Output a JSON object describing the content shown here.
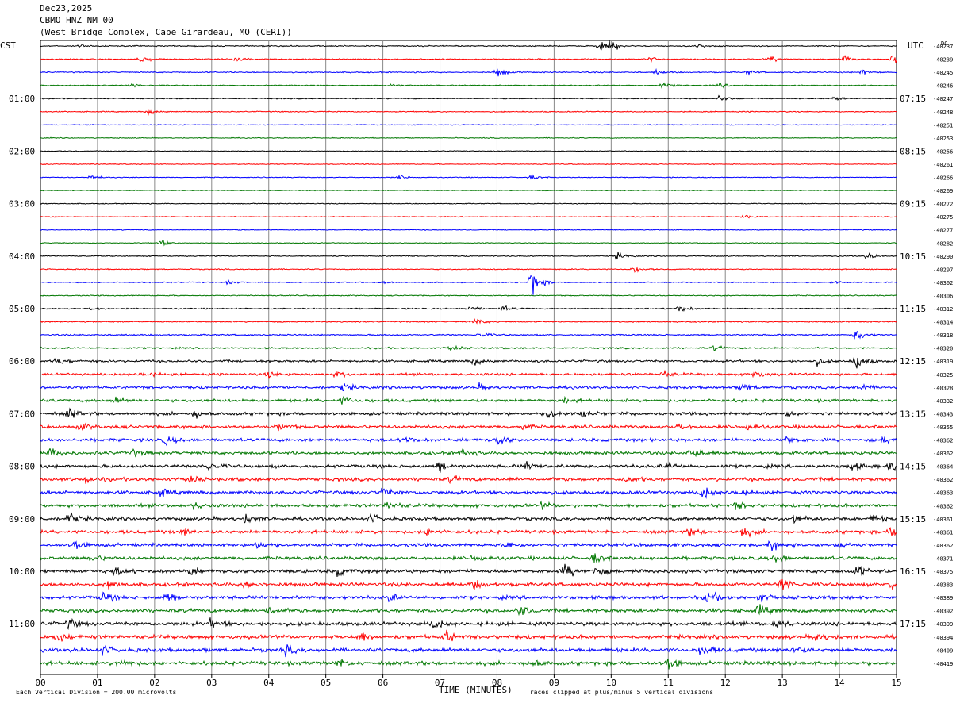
{
  "header": {
    "date": "Dec23,2025",
    "station": "CBMO HNZ NM 00",
    "location": "(West Bridge Complex, Cape Girardeau, MO (CERI))"
  },
  "left_axis_label": "CST",
  "right_axis_label": "UTC",
  "dc_label": "DC",
  "footer": {
    "xlabel": "TIME (MINUTES)",
    "scale_note": "Each Vertical Division =  200.00 microvolts",
    "clip_note": "Traces clipped at plus/minus 5 vertical divisions"
  },
  "colors": {
    "cycle": [
      "#000000",
      "#ff0000",
      "#0000ff",
      "#007700"
    ],
    "grid": "#888888"
  },
  "chart_data": {
    "type": "line",
    "title": "CBMO HNZ NM 00",
    "xlabel": "TIME (MINUTES)",
    "xlim": [
      0,
      15
    ],
    "x_ticks": [
      "00",
      "01",
      "02",
      "03",
      "04",
      "05",
      "06",
      "07",
      "08",
      "09",
      "10",
      "11",
      "12",
      "13",
      "14",
      "15"
    ],
    "cst_labels": [
      {
        "row": 4,
        "text": "01:00"
      },
      {
        "row": 8,
        "text": "02:00"
      },
      {
        "row": 12,
        "text": "03:00"
      },
      {
        "row": 16,
        "text": "04:00"
      },
      {
        "row": 20,
        "text": "05:00"
      },
      {
        "row": 24,
        "text": "06:00"
      },
      {
        "row": 28,
        "text": "07:00"
      },
      {
        "row": 32,
        "text": "08:00"
      },
      {
        "row": 36,
        "text": "09:00"
      },
      {
        "row": 40,
        "text": "10:00"
      },
      {
        "row": 44,
        "text": "11:00"
      }
    ],
    "utc_labels": [
      {
        "row": 4,
        "text": "07:15"
      },
      {
        "row": 8,
        "text": "08:15"
      },
      {
        "row": 12,
        "text": "09:15"
      },
      {
        "row": 16,
        "text": "10:15"
      },
      {
        "row": 20,
        "text": "11:15"
      },
      {
        "row": 24,
        "text": "12:15"
      },
      {
        "row": 28,
        "text": "13:15"
      },
      {
        "row": 32,
        "text": "14:15"
      },
      {
        "row": 36,
        "text": "15:15"
      },
      {
        "row": 40,
        "text": "16:15"
      },
      {
        "row": 44,
        "text": "17:15"
      }
    ],
    "dc_offsets": [
      "-40237",
      "-40239",
      "-40245",
      "-40246",
      "-40247",
      "-40248",
      "-40251",
      "-40253",
      "-40256",
      "-40261",
      "-40266",
      "-40269",
      "-40272",
      "-40275",
      "-40277",
      "-40282",
      "-40290",
      "-40297",
      "-40302",
      "-40306",
      "-40312",
      "-40314",
      "-40318",
      "-40320",
      "-40319",
      "-40325",
      "-40328",
      "-40332",
      "-40343",
      "-40355",
      "-40362",
      "-40362",
      "-40364",
      "-40362",
      "-40363",
      "-40362",
      "-40361",
      "-40361",
      "-40362",
      "-40371",
      "-40375",
      "-40383",
      "-40389",
      "-40392",
      "-40399",
      "-40394",
      "-40409",
      "-40419"
    ],
    "noise_levels": [
      1.1,
      1.1,
      1.1,
      1.0,
      1.0,
      1.0,
      0.8,
      0.8,
      0.8,
      0.8,
      0.8,
      0.8,
      0.8,
      0.8,
      0.8,
      0.8,
      1.0,
      1.0,
      1.0,
      1.0,
      1.2,
      1.2,
      1.4,
      1.6,
      2.2,
      2.4,
      2.6,
      2.8,
      3.0,
      3.0,
      3.0,
      3.0,
      3.2,
      3.2,
      3.2,
      3.2,
      3.2,
      3.2,
      3.2,
      3.2,
      3.4,
      3.4,
      3.4,
      3.4,
      3.6,
      3.6,
      3.6,
      3.6
    ],
    "events": [
      {
        "row": 0,
        "x": 0.7,
        "amp": 4
      },
      {
        "row": 0,
        "x": 9.8,
        "amp": 7
      },
      {
        "row": 0,
        "x": 10.0,
        "amp": 9
      },
      {
        "row": 0,
        "x": 11.5,
        "amp": 4
      },
      {
        "row": 1,
        "x": 1.75,
        "amp": 7
      },
      {
        "row": 1,
        "x": 3.4,
        "amp": 4
      },
      {
        "row": 1,
        "x": 10.7,
        "amp": 4
      },
      {
        "row": 1,
        "x": 12.8,
        "amp": 5
      },
      {
        "row": 1,
        "x": 14.1,
        "amp": 5
      },
      {
        "row": 1,
        "x": 14.95,
        "amp": 10
      },
      {
        "row": 2,
        "x": 8.0,
        "amp": 8
      },
      {
        "row": 2,
        "x": 10.8,
        "amp": 4
      },
      {
        "row": 2,
        "x": 12.4,
        "amp": 4
      },
      {
        "row": 2,
        "x": 14.4,
        "amp": 6
      },
      {
        "row": 3,
        "x": 1.6,
        "amp": 4
      },
      {
        "row": 3,
        "x": 6.1,
        "amp": 4
      },
      {
        "row": 3,
        "x": 10.9,
        "amp": 5
      },
      {
        "row": 3,
        "x": 11.9,
        "amp": 4
      },
      {
        "row": 4,
        "x": 11.9,
        "amp": 5
      },
      {
        "row": 4,
        "x": 13.9,
        "amp": 4
      },
      {
        "row": 5,
        "x": 1.9,
        "amp": 5
      },
      {
        "row": 10,
        "x": 0.9,
        "amp": 5
      },
      {
        "row": 10,
        "x": 6.3,
        "amp": 4
      },
      {
        "row": 10,
        "x": 8.6,
        "amp": 4
      },
      {
        "row": 13,
        "x": 12.3,
        "amp": 4
      },
      {
        "row": 15,
        "x": 2.1,
        "amp": 6
      },
      {
        "row": 16,
        "x": 10.1,
        "amp": 6
      },
      {
        "row": 16,
        "x": 14.5,
        "amp": 6
      },
      {
        "row": 17,
        "x": 10.4,
        "amp": 5
      },
      {
        "row": 18,
        "x": 3.3,
        "amp": 3
      },
      {
        "row": 18,
        "x": 6.0,
        "amp": 4
      },
      {
        "row": 18,
        "x": 8.6,
        "amp": 26
      },
      {
        "row": 18,
        "x": 13.9,
        "amp": 3
      },
      {
        "row": 20,
        "x": 0.9,
        "amp": 3
      },
      {
        "row": 20,
        "x": 7.5,
        "amp": 6
      },
      {
        "row": 20,
        "x": 8.1,
        "amp": 5
      },
      {
        "row": 20,
        "x": 11.2,
        "amp": 8
      },
      {
        "row": 21,
        "x": 7.6,
        "amp": 7
      },
      {
        "row": 22,
        "x": 7.7,
        "amp": 4
      },
      {
        "row": 22,
        "x": 14.3,
        "amp": 12
      },
      {
        "row": 23,
        "x": 7.2,
        "amp": 6
      },
      {
        "row": 23,
        "x": 11.8,
        "amp": 4
      },
      {
        "row": 24,
        "x": 0.3,
        "amp": 7
      },
      {
        "row": 24,
        "x": 7.6,
        "amp": 7
      },
      {
        "row": 24,
        "x": 13.6,
        "amp": 6
      },
      {
        "row": 24,
        "x": 14.3,
        "amp": 16
      },
      {
        "row": 25,
        "x": 1.8,
        "amp": 5
      },
      {
        "row": 25,
        "x": 4.0,
        "amp": 6
      },
      {
        "row": 25,
        "x": 5.2,
        "amp": 6
      },
      {
        "row": 25,
        "x": 10.9,
        "amp": 6
      },
      {
        "row": 25,
        "x": 12.5,
        "amp": 7
      },
      {
        "row": 26,
        "x": 5.3,
        "amp": 7
      },
      {
        "row": 26,
        "x": 7.7,
        "amp": 5
      },
      {
        "row": 26,
        "x": 12.3,
        "amp": 9
      },
      {
        "row": 26,
        "x": 14.3,
        "amp": 8
      },
      {
        "row": 27,
        "x": 1.3,
        "amp": 6
      },
      {
        "row": 27,
        "x": 5.3,
        "amp": 7
      },
      {
        "row": 27,
        "x": 9.2,
        "amp": 5
      },
      {
        "row": 28,
        "x": 0.5,
        "amp": 8
      },
      {
        "row": 28,
        "x": 2.7,
        "amp": 6
      },
      {
        "row": 28,
        "x": 8.9,
        "amp": 12
      },
      {
        "row": 28,
        "x": 9.5,
        "amp": 7
      },
      {
        "row": 28,
        "x": 13.1,
        "amp": 6
      },
      {
        "row": 29,
        "x": 0.7,
        "amp": 6
      },
      {
        "row": 29,
        "x": 4.2,
        "amp": 8
      },
      {
        "row": 29,
        "x": 8.4,
        "amp": 6
      },
      {
        "row": 29,
        "x": 11.2,
        "amp": 6
      },
      {
        "row": 29,
        "x": 12.4,
        "amp": 6
      },
      {
        "row": 30,
        "x": 2.2,
        "amp": 7
      },
      {
        "row": 30,
        "x": 6.4,
        "amp": 7
      },
      {
        "row": 30,
        "x": 8.0,
        "amp": 10
      },
      {
        "row": 30,
        "x": 13.1,
        "amp": 7
      },
      {
        "row": 30,
        "x": 14.8,
        "amp": 8
      },
      {
        "row": 31,
        "x": 0.2,
        "amp": 8
      },
      {
        "row": 31,
        "x": 1.6,
        "amp": 7
      },
      {
        "row": 31,
        "x": 7.4,
        "amp": 7
      },
      {
        "row": 31,
        "x": 11.4,
        "amp": 10
      },
      {
        "row": 32,
        "x": 2.9,
        "amp": 9
      },
      {
        "row": 32,
        "x": 7.0,
        "amp": 8
      },
      {
        "row": 32,
        "x": 8.5,
        "amp": 8
      },
      {
        "row": 32,
        "x": 11.0,
        "amp": 6
      },
      {
        "row": 32,
        "x": 14.2,
        "amp": 8
      },
      {
        "row": 32,
        "x": 14.9,
        "amp": 10
      },
      {
        "row": 33,
        "x": 0.8,
        "amp": 6
      },
      {
        "row": 33,
        "x": 2.6,
        "amp": 8
      },
      {
        "row": 33,
        "x": 7.2,
        "amp": 6
      },
      {
        "row": 33,
        "x": 10.3,
        "amp": 6
      },
      {
        "row": 34,
        "x": 2.1,
        "amp": 6
      },
      {
        "row": 34,
        "x": 6.0,
        "amp": 8
      },
      {
        "row": 34,
        "x": 11.6,
        "amp": 14
      },
      {
        "row": 34,
        "x": 12.2,
        "amp": 6
      },
      {
        "row": 35,
        "x": 2.7,
        "amp": 6
      },
      {
        "row": 35,
        "x": 6.1,
        "amp": 9
      },
      {
        "row": 35,
        "x": 8.8,
        "amp": 6
      },
      {
        "row": 35,
        "x": 12.2,
        "amp": 7
      },
      {
        "row": 36,
        "x": 0.5,
        "amp": 12
      },
      {
        "row": 36,
        "x": 3.6,
        "amp": 8
      },
      {
        "row": 36,
        "x": 5.8,
        "amp": 8
      },
      {
        "row": 36,
        "x": 13.2,
        "amp": 7
      },
      {
        "row": 36,
        "x": 14.6,
        "amp": 7
      },
      {
        "row": 37,
        "x": 2.5,
        "amp": 6
      },
      {
        "row": 37,
        "x": 6.8,
        "amp": 8
      },
      {
        "row": 37,
        "x": 11.4,
        "amp": 7
      },
      {
        "row": 37,
        "x": 12.3,
        "amp": 9
      },
      {
        "row": 37,
        "x": 14.9,
        "amp": 8
      },
      {
        "row": 38,
        "x": 0.6,
        "amp": 9
      },
      {
        "row": 38,
        "x": 3.8,
        "amp": 8
      },
      {
        "row": 38,
        "x": 8.2,
        "amp": 7
      },
      {
        "row": 38,
        "x": 12.8,
        "amp": 9
      },
      {
        "row": 38,
        "x": 14.0,
        "amp": 7
      },
      {
        "row": 39,
        "x": 0.9,
        "amp": 6
      },
      {
        "row": 39,
        "x": 7.6,
        "amp": 8
      },
      {
        "row": 39,
        "x": 9.7,
        "amp": 8
      },
      {
        "row": 39,
        "x": 12.9,
        "amp": 7
      },
      {
        "row": 40,
        "x": 1.3,
        "amp": 7
      },
      {
        "row": 40,
        "x": 2.6,
        "amp": 8
      },
      {
        "row": 40,
        "x": 5.2,
        "amp": 8
      },
      {
        "row": 40,
        "x": 9.2,
        "amp": 14
      },
      {
        "row": 40,
        "x": 9.7,
        "amp": 9
      },
      {
        "row": 40,
        "x": 14.3,
        "amp": 10
      },
      {
        "row": 41,
        "x": 1.2,
        "amp": 7
      },
      {
        "row": 41,
        "x": 3.6,
        "amp": 7
      },
      {
        "row": 41,
        "x": 7.6,
        "amp": 8
      },
      {
        "row": 41,
        "x": 13.0,
        "amp": 14
      },
      {
        "row": 41,
        "x": 14.9,
        "amp": 10
      },
      {
        "row": 42,
        "x": 1.1,
        "amp": 9
      },
      {
        "row": 42,
        "x": 2.2,
        "amp": 9
      },
      {
        "row": 42,
        "x": 6.1,
        "amp": 7
      },
      {
        "row": 42,
        "x": 11.7,
        "amp": 14
      },
      {
        "row": 42,
        "x": 12.6,
        "amp": 7
      },
      {
        "row": 43,
        "x": 4.0,
        "amp": 8
      },
      {
        "row": 43,
        "x": 8.4,
        "amp": 10
      },
      {
        "row": 43,
        "x": 12.6,
        "amp": 9
      },
      {
        "row": 44,
        "x": 0.5,
        "amp": 8
      },
      {
        "row": 44,
        "x": 3.0,
        "amp": 8
      },
      {
        "row": 44,
        "x": 6.9,
        "amp": 10
      },
      {
        "row": 44,
        "x": 12.9,
        "amp": 9
      },
      {
        "row": 45,
        "x": 0.3,
        "amp": 10
      },
      {
        "row": 45,
        "x": 5.6,
        "amp": 9
      },
      {
        "row": 45,
        "x": 7.1,
        "amp": 10
      },
      {
        "row": 45,
        "x": 13.6,
        "amp": 9
      },
      {
        "row": 46,
        "x": 1.1,
        "amp": 8
      },
      {
        "row": 46,
        "x": 4.3,
        "amp": 8
      },
      {
        "row": 46,
        "x": 11.6,
        "amp": 12
      },
      {
        "row": 46,
        "x": 13.2,
        "amp": 7
      },
      {
        "row": 47,
        "x": 1.4,
        "amp": 8
      },
      {
        "row": 47,
        "x": 5.2,
        "amp": 8
      },
      {
        "row": 47,
        "x": 8.6,
        "amp": 8
      },
      {
        "row": 47,
        "x": 11.0,
        "amp": 12
      }
    ]
  }
}
